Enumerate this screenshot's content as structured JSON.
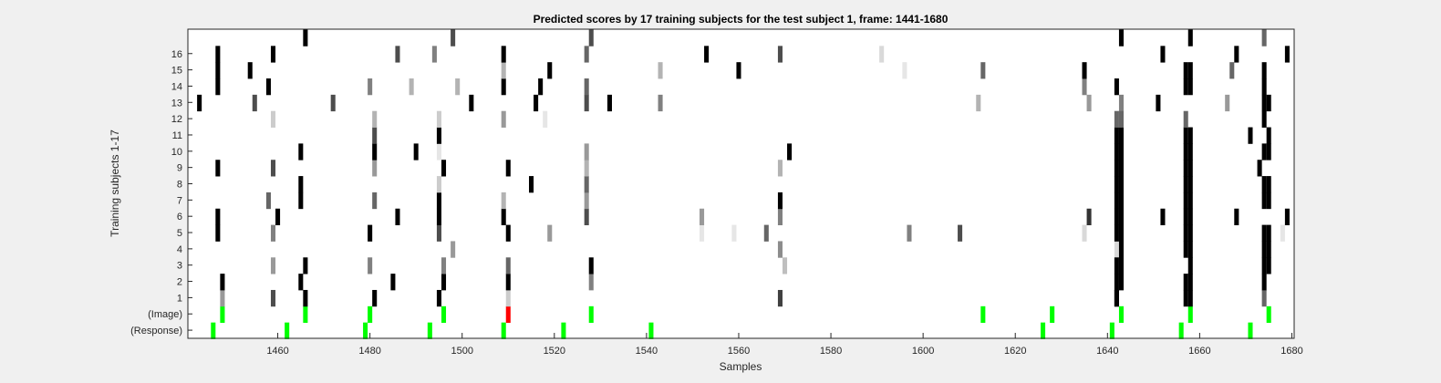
{
  "chart_data": {
    "type": "heatmap",
    "title": "Predicted scores by 17 training subjects for the test subject 1, frame: 1441-1680",
    "xlabel": "Samples",
    "ylabel": "Training subjects 1-17",
    "xlim": [
      1441,
      1680
    ],
    "x_ticks": [
      "1460",
      "1480",
      "1500",
      "1520",
      "1540",
      "1560",
      "1580",
      "1600",
      "1620",
      "1640",
      "1660",
      "1680"
    ],
    "x_tick_values": [
      1460,
      1480,
      1500,
      1520,
      1540,
      1560,
      1580,
      1600,
      1620,
      1640,
      1660,
      1680
    ],
    "rows": [
      "(Response)",
      "(Image)",
      "1",
      "2",
      "3",
      "4",
      "5",
      "6",
      "7",
      "8",
      "9",
      "10",
      "11",
      "12",
      "13",
      "14",
      "15",
      "16",
      "17"
    ],
    "y_tick_labels": [
      "(Response)",
      "(Image)",
      "1",
      "2",
      "3",
      "4",
      "5",
      "6",
      "7",
      "8",
      "9",
      "10",
      "11",
      "12",
      "13",
      "14",
      "15",
      "16"
    ],
    "colors": {
      "correct": "#00ff00",
      "error": "#ff0000",
      "background": "#ffffff",
      "plot_bg": "#f0f0f0"
    },
    "marks": [
      {
        "row": "(Response)",
        "x": 1446,
        "v": "green"
      },
      {
        "row": "(Response)",
        "x": 1462,
        "v": "green"
      },
      {
        "row": "(Response)",
        "x": 1479,
        "v": "green"
      },
      {
        "row": "(Response)",
        "x": 1493,
        "v": "green"
      },
      {
        "row": "(Response)",
        "x": 1509,
        "v": "green"
      },
      {
        "row": "(Response)",
        "x": 1522,
        "v": "green"
      },
      {
        "row": "(Response)",
        "x": 1541,
        "v": "green"
      },
      {
        "row": "(Response)",
        "x": 1626,
        "v": "green"
      },
      {
        "row": "(Response)",
        "x": 1641,
        "v": "green"
      },
      {
        "row": "(Response)",
        "x": 1656,
        "v": "green"
      },
      {
        "row": "(Response)",
        "x": 1671,
        "v": "green"
      },
      {
        "row": "(Image)",
        "x": 1448,
        "v": "green"
      },
      {
        "row": "(Image)",
        "x": 1466,
        "v": "green"
      },
      {
        "row": "(Image)",
        "x": 1480,
        "v": "green"
      },
      {
        "row": "(Image)",
        "x": 1496,
        "v": "green"
      },
      {
        "row": "(Image)",
        "x": 1510,
        "v": "red"
      },
      {
        "row": "(Image)",
        "x": 1528,
        "v": "green"
      },
      {
        "row": "(Image)",
        "x": 1613,
        "v": "green"
      },
      {
        "row": "(Image)",
        "x": 1628,
        "v": "green"
      },
      {
        "row": "(Image)",
        "x": 1643,
        "v": "green"
      },
      {
        "row": "(Image)",
        "x": 1658,
        "v": "green"
      },
      {
        "row": "(Image)",
        "x": 1675,
        "v": "green"
      },
      {
        "row": "1",
        "x": 1448,
        "v": 0.6
      },
      {
        "row": "1",
        "x": 1459,
        "v": 0.3
      },
      {
        "row": "1",
        "x": 1466,
        "v": 0
      },
      {
        "row": "1",
        "x": 1481,
        "v": 0
      },
      {
        "row": "1",
        "x": 1495,
        "v": 0
      },
      {
        "row": "1",
        "x": 1510,
        "v": 0.8
      },
      {
        "row": "1",
        "x": 1569,
        "v": 0.25
      },
      {
        "row": "1",
        "x": 1642,
        "v": 0
      },
      {
        "row": "1",
        "x": 1657,
        "v": 0
      },
      {
        "row": "1",
        "x": 1674,
        "v": 0.4
      },
      {
        "row": "2",
        "x": 1448,
        "v": 0
      },
      {
        "row": "2",
        "x": 1465,
        "v": 0
      },
      {
        "row": "2",
        "x": 1485,
        "v": 0
      },
      {
        "row": "2",
        "x": 1496,
        "v": 0
      },
      {
        "row": "2",
        "x": 1510,
        "v": 0
      },
      {
        "row": "2",
        "x": 1528,
        "v": 0.5
      },
      {
        "row": "2",
        "x": 1643,
        "v": 0
      },
      {
        "row": "2",
        "x": 1657,
        "v": 0
      },
      {
        "row": "2",
        "x": 1674,
        "v": 0
      },
      {
        "row": "3",
        "x": 1459,
        "v": 0.6
      },
      {
        "row": "3",
        "x": 1466,
        "v": 0
      },
      {
        "row": "3",
        "x": 1480,
        "v": 0.5
      },
      {
        "row": "3",
        "x": 1496,
        "v": 0.5
      },
      {
        "row": "3",
        "x": 1510,
        "v": 0.4
      },
      {
        "row": "3",
        "x": 1528,
        "v": 0
      },
      {
        "row": "3",
        "x": 1570,
        "v": 0.75
      },
      {
        "row": "3",
        "x": 1643,
        "v": 0
      },
      {
        "row": "3",
        "x": 1658,
        "v": 0
      },
      {
        "row": "3",
        "x": 1674,
        "v": 0
      },
      {
        "row": "4",
        "x": 1498,
        "v": 0.6
      },
      {
        "row": "4",
        "x": 1569,
        "v": 0.55
      },
      {
        "row": "4",
        "x": 1642,
        "v": 0.85
      },
      {
        "row": "4",
        "x": 1657,
        "v": 0
      },
      {
        "row": "4",
        "x": 1674,
        "v": 0
      },
      {
        "row": "5",
        "x": 1447,
        "v": 0
      },
      {
        "row": "5",
        "x": 1459,
        "v": 0.5
      },
      {
        "row": "5",
        "x": 1480,
        "v": 0
      },
      {
        "row": "5",
        "x": 1495,
        "v": 0.3
      },
      {
        "row": "5",
        "x": 1510,
        "v": 0
      },
      {
        "row": "5",
        "x": 1519,
        "v": 0.6
      },
      {
        "row": "5",
        "x": 1552,
        "v": 0.9
      },
      {
        "row": "5",
        "x": 1559,
        "v": 0.9
      },
      {
        "row": "5",
        "x": 1566,
        "v": 0.4
      },
      {
        "row": "5",
        "x": 1597,
        "v": 0.5
      },
      {
        "row": "5",
        "x": 1608,
        "v": 0.3
      },
      {
        "row": "5",
        "x": 1635,
        "v": 0.85
      },
      {
        "row": "5",
        "x": 1642,
        "v": 0
      },
      {
        "row": "5",
        "x": 1657,
        "v": 0
      },
      {
        "row": "5",
        "x": 1674,
        "v": 0
      },
      {
        "row": "5",
        "x": 1678,
        "v": 0.9
      },
      {
        "row": "6",
        "x": 1447,
        "v": 0
      },
      {
        "row": "6",
        "x": 1460,
        "v": 0
      },
      {
        "row": "6",
        "x": 1486,
        "v": 0
      },
      {
        "row": "6",
        "x": 1495,
        "v": 0
      },
      {
        "row": "6",
        "x": 1509,
        "v": 0
      },
      {
        "row": "6",
        "x": 1527,
        "v": 0.3
      },
      {
        "row": "6",
        "x": 1552,
        "v": 0.6
      },
      {
        "row": "6",
        "x": 1569,
        "v": 0.5
      },
      {
        "row": "6",
        "x": 1636,
        "v": 0.2
      },
      {
        "row": "6",
        "x": 1643,
        "v": 0
      },
      {
        "row": "6",
        "x": 1652,
        "v": 0
      },
      {
        "row": "6",
        "x": 1657,
        "v": 0
      },
      {
        "row": "6",
        "x": 1668,
        "v": 0
      },
      {
        "row": "6",
        "x": 1679,
        "v": 0
      },
      {
        "row": "7",
        "x": 1458,
        "v": 0.4
      },
      {
        "row": "7",
        "x": 1465,
        "v": 0
      },
      {
        "row": "7",
        "x": 1481,
        "v": 0.4
      },
      {
        "row": "7",
        "x": 1495,
        "v": 0
      },
      {
        "row": "7",
        "x": 1509,
        "v": 0.7
      },
      {
        "row": "7",
        "x": 1527,
        "v": 0.6
      },
      {
        "row": "7",
        "x": 1569,
        "v": 0
      },
      {
        "row": "7",
        "x": 1642,
        "v": 0
      },
      {
        "row": "7",
        "x": 1657,
        "v": 0
      },
      {
        "row": "7",
        "x": 1674,
        "v": 0
      },
      {
        "row": "8",
        "x": 1465,
        "v": 0
      },
      {
        "row": "8",
        "x": 1495,
        "v": 0.8
      },
      {
        "row": "8",
        "x": 1515,
        "v": 0
      },
      {
        "row": "8",
        "x": 1527,
        "v": 0.4
      },
      {
        "row": "8",
        "x": 1642,
        "v": 0
      },
      {
        "row": "8",
        "x": 1657,
        "v": 0
      },
      {
        "row": "8",
        "x": 1674,
        "v": 0
      },
      {
        "row": "9",
        "x": 1447,
        "v": 0
      },
      {
        "row": "9",
        "x": 1459,
        "v": 0.3
      },
      {
        "row": "9",
        "x": 1481,
        "v": 0.6
      },
      {
        "row": "9",
        "x": 1496,
        "v": 0
      },
      {
        "row": "9",
        "x": 1510,
        "v": 0
      },
      {
        "row": "9",
        "x": 1527,
        "v": 0.7
      },
      {
        "row": "9",
        "x": 1569,
        "v": 0.7
      },
      {
        "row": "9",
        "x": 1642,
        "v": 0
      },
      {
        "row": "9",
        "x": 1657,
        "v": 0
      },
      {
        "row": "9",
        "x": 1673,
        "v": 0
      },
      {
        "row": "10",
        "x": 1465,
        "v": 0
      },
      {
        "row": "10",
        "x": 1481,
        "v": 0
      },
      {
        "row": "10",
        "x": 1490,
        "v": 0
      },
      {
        "row": "10",
        "x": 1495,
        "v": 0.9
      },
      {
        "row": "10",
        "x": 1527,
        "v": 0.6
      },
      {
        "row": "10",
        "x": 1571,
        "v": 0
      },
      {
        "row": "10",
        "x": 1642,
        "v": 0
      },
      {
        "row": "10",
        "x": 1657,
        "v": 0
      },
      {
        "row": "10",
        "x": 1674,
        "v": 0
      },
      {
        "row": "11",
        "x": 1481,
        "v": 0.3
      },
      {
        "row": "11",
        "x": 1495,
        "v": 0
      },
      {
        "row": "11",
        "x": 1642,
        "v": 0
      },
      {
        "row": "11",
        "x": 1657,
        "v": 0
      },
      {
        "row": "11",
        "x": 1671,
        "v": 0
      },
      {
        "row": "12",
        "x": 1459,
        "v": 0.8
      },
      {
        "row": "12",
        "x": 1481,
        "v": 0.7
      },
      {
        "row": "12",
        "x": 1495,
        "v": 0.8
      },
      {
        "row": "12",
        "x": 1509,
        "v": 0.6
      },
      {
        "row": "12",
        "x": 1518,
        "v": 0.9
      },
      {
        "row": "12",
        "x": 1642,
        "v": 0.4
      },
      {
        "row": "12",
        "x": 1657,
        "v": 0.4
      },
      {
        "row": "12",
        "x": 1674,
        "v": 0
      },
      {
        "row": "13",
        "x": 1443,
        "v": 0
      },
      {
        "row": "13",
        "x": 1455,
        "v": 0.3
      },
      {
        "row": "13",
        "x": 1472,
        "v": 0.3
      },
      {
        "row": "13",
        "x": 1502,
        "v": 0
      },
      {
        "row": "13",
        "x": 1516,
        "v": 0
      },
      {
        "row": "13",
        "x": 1527,
        "v": 0.3
      },
      {
        "row": "13",
        "x": 1532,
        "v": 0
      },
      {
        "row": "13",
        "x": 1543,
        "v": 0.5
      },
      {
        "row": "13",
        "x": 1612,
        "v": 0.7
      },
      {
        "row": "13",
        "x": 1636,
        "v": 0.6
      },
      {
        "row": "13",
        "x": 1643,
        "v": 0.5
      },
      {
        "row": "13",
        "x": 1651,
        "v": 0
      },
      {
        "row": "13",
        "x": 1666,
        "v": 0.6
      },
      {
        "row": "13",
        "x": 1674,
        "v": 0
      },
      {
        "row": "14",
        "x": 1447,
        "v": 0
      },
      {
        "row": "14",
        "x": 1458,
        "v": 0
      },
      {
        "row": "14",
        "x": 1480,
        "v": 0.5
      },
      {
        "row": "14",
        "x": 1489,
        "v": 0.7
      },
      {
        "row": "14",
        "x": 1499,
        "v": 0.7
      },
      {
        "row": "14",
        "x": 1509,
        "v": 0
      },
      {
        "row": "14",
        "x": 1517,
        "v": 0
      },
      {
        "row": "14",
        "x": 1527,
        "v": 0.4
      },
      {
        "row": "14",
        "x": 1635,
        "v": 0.5
      },
      {
        "row": "14",
        "x": 1642,
        "v": 0
      },
      {
        "row": "14",
        "x": 1657,
        "v": 0
      },
      {
        "row": "14",
        "x": 1674,
        "v": 0
      },
      {
        "row": "15",
        "x": 1447,
        "v": 0
      },
      {
        "row": "15",
        "x": 1454,
        "v": 0
      },
      {
        "row": "15",
        "x": 1509,
        "v": 0.7
      },
      {
        "row": "15",
        "x": 1519,
        "v": 0
      },
      {
        "row": "15",
        "x": 1543,
        "v": 0.7
      },
      {
        "row": "15",
        "x": 1560,
        "v": 0
      },
      {
        "row": "15",
        "x": 1596,
        "v": 0.9
      },
      {
        "row": "15",
        "x": 1613,
        "v": 0.4
      },
      {
        "row": "15",
        "x": 1635,
        "v": 0
      },
      {
        "row": "15",
        "x": 1657,
        "v": 0
      },
      {
        "row": "15",
        "x": 1667,
        "v": 0.4
      },
      {
        "row": "15",
        "x": 1674,
        "v": 0
      },
      {
        "row": "16",
        "x": 1447,
        "v": 0
      },
      {
        "row": "16",
        "x": 1459,
        "v": 0
      },
      {
        "row": "16",
        "x": 1486,
        "v": 0.3
      },
      {
        "row": "16",
        "x": 1494,
        "v": 0.5
      },
      {
        "row": "16",
        "x": 1509,
        "v": 0
      },
      {
        "row": "16",
        "x": 1527,
        "v": 0.4
      },
      {
        "row": "16",
        "x": 1553,
        "v": 0
      },
      {
        "row": "16",
        "x": 1569,
        "v": 0.3
      },
      {
        "row": "16",
        "x": 1591,
        "v": 0.85
      },
      {
        "row": "16",
        "x": 1652,
        "v": 0
      },
      {
        "row": "16",
        "x": 1668,
        "v": 0
      },
      {
        "row": "16",
        "x": 1679,
        "v": 0
      },
      {
        "row": "17",
        "x": 1466,
        "v": 0
      },
      {
        "row": "17",
        "x": 1498,
        "v": 0.3
      },
      {
        "row": "17",
        "x": 1528,
        "v": 0.3
      },
      {
        "row": "17",
        "x": 1643,
        "v": 0
      },
      {
        "row": "17",
        "x": 1658,
        "v": 0
      },
      {
        "row": "17",
        "x": 1674,
        "v": 0.4
      },
      {
        "row": "1",
        "x": 1642,
        "v": 0
      },
      {
        "row": "2",
        "x": 1642,
        "v": 0
      },
      {
        "row": "3",
        "x": 1642,
        "v": 0
      },
      {
        "row": "4",
        "x": 1643,
        "v": 0
      },
      {
        "row": "5",
        "x": 1643,
        "v": 0
      },
      {
        "row": "6",
        "x": 1642,
        "v": 0
      },
      {
        "row": "7",
        "x": 1643,
        "v": 0
      },
      {
        "row": "8",
        "x": 1643,
        "v": 0
      },
      {
        "row": "9",
        "x": 1643,
        "v": 0
      },
      {
        "row": "10",
        "x": 1643,
        "v": 0
      },
      {
        "row": "11",
        "x": 1643,
        "v": 0
      },
      {
        "row": "12",
        "x": 1643,
        "v": 0.4
      },
      {
        "row": "1",
        "x": 1658,
        "v": 0
      },
      {
        "row": "2",
        "x": 1658,
        "v": 0
      },
      {
        "row": "4",
        "x": 1658,
        "v": 0
      },
      {
        "row": "5",
        "x": 1658,
        "v": 0
      },
      {
        "row": "6",
        "x": 1658,
        "v": 0
      },
      {
        "row": "7",
        "x": 1658,
        "v": 0
      },
      {
        "row": "8",
        "x": 1658,
        "v": 0
      },
      {
        "row": "9",
        "x": 1658,
        "v": 0
      },
      {
        "row": "10",
        "x": 1658,
        "v": 0
      },
      {
        "row": "11",
        "x": 1658,
        "v": 0
      },
      {
        "row": "14",
        "x": 1658,
        "v": 0
      },
      {
        "row": "15",
        "x": 1658,
        "v": 0
      },
      {
        "row": "3",
        "x": 1675,
        "v": 0
      },
      {
        "row": "4",
        "x": 1675,
        "v": 0
      },
      {
        "row": "5",
        "x": 1675,
        "v": 0
      },
      {
        "row": "7",
        "x": 1675,
        "v": 0
      },
      {
        "row": "8",
        "x": 1675,
        "v": 0
      },
      {
        "row": "10",
        "x": 1675,
        "v": 0
      },
      {
        "row": "11",
        "x": 1675,
        "v": 0
      },
      {
        "row": "13",
        "x": 1675,
        "v": 0
      }
    ]
  }
}
